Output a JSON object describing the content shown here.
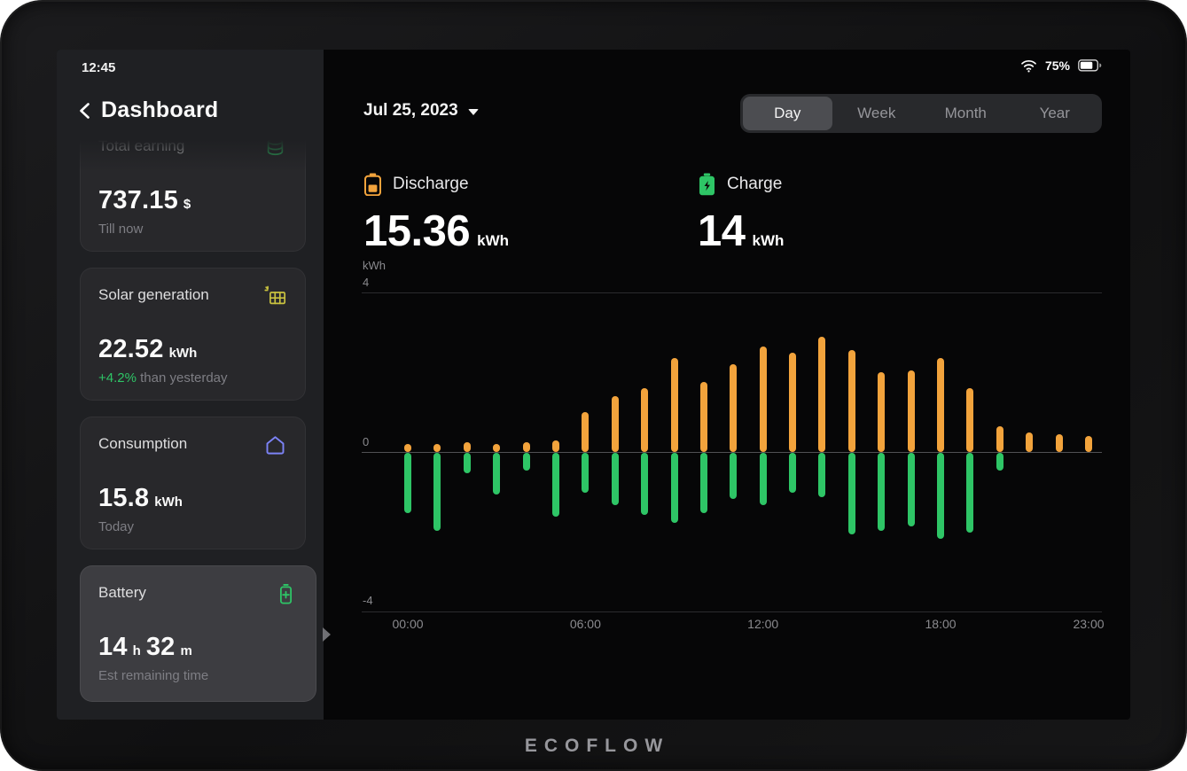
{
  "status_bar": {
    "time": "12:45",
    "battery_percent": "75%"
  },
  "sidebar": {
    "title": "Dashboard",
    "cards": [
      {
        "title": "Total earning",
        "icon": "coins-icon",
        "value": "737.15",
        "unit": "$",
        "subtitle": "Till now"
      },
      {
        "title": "Solar generation",
        "icon": "solar-panel-icon",
        "value": "22.52",
        "unit": "kWh",
        "subtitle_highlight": "+4.2%",
        "subtitle_rest": " than yesterday"
      },
      {
        "title": "Consumption",
        "icon": "house-icon",
        "value": "15.8",
        "unit": "kWh",
        "subtitle": "Today"
      },
      {
        "title": "Battery",
        "icon": "battery-plus-icon",
        "value_h": "14",
        "unit_h": "h",
        "value_m": "32",
        "unit_m": "m",
        "subtitle": "Est remaining time",
        "selected": true
      }
    ]
  },
  "header": {
    "date": "Jul 25, 2023",
    "tabs": [
      {
        "label": "Day",
        "selected": true
      },
      {
        "label": "Week",
        "selected": false
      },
      {
        "label": "Month",
        "selected": false
      },
      {
        "label": "Year",
        "selected": false
      }
    ]
  },
  "stats": {
    "discharge": {
      "label": "Discharge",
      "value": "15.36",
      "unit": "kWh",
      "color": "#f2a33c"
    },
    "charge": {
      "label": "Charge",
      "value": "14",
      "unit": "kWh",
      "color": "#2ec566"
    }
  },
  "chart_data": {
    "type": "bar",
    "title": "",
    "ylabel": "kWh",
    "ylim": [
      -4,
      4
    ],
    "ytick_top": "4",
    "ytick_zero": "0",
    "ytick_bottom": "-4",
    "grid": true,
    "x": [
      0,
      1,
      2,
      3,
      4,
      5,
      6,
      7,
      8,
      9,
      10,
      11,
      12,
      13,
      14,
      15,
      16,
      17,
      18,
      19,
      20,
      21,
      22,
      23
    ],
    "x_ticks": [
      {
        "index": 0,
        "label": "00:00"
      },
      {
        "index": 6,
        "label": "06:00"
      },
      {
        "index": 12,
        "label": "12:00"
      },
      {
        "index": 18,
        "label": "18:00"
      },
      {
        "index": 23,
        "label": "23:00"
      }
    ],
    "series": [
      {
        "name": "Discharge",
        "color": "#f2a33c",
        "values": [
          0.2,
          0.2,
          0.25,
          0.2,
          0.25,
          0.3,
          1.0,
          1.4,
          1.6,
          2.35,
          1.75,
          2.2,
          2.65,
          2.5,
          2.9,
          2.55,
          2.0,
          2.05,
          2.35,
          1.6,
          0.65,
          0.5,
          0.45,
          0.4
        ]
      },
      {
        "name": "Charge",
        "color": "#2ec566",
        "values": [
          -1.5,
          -1.95,
          -0.5,
          -1.05,
          -0.45,
          -1.6,
          -1.0,
          -1.3,
          -1.55,
          -1.75,
          -1.5,
          -1.15,
          -1.3,
          -1.0,
          -1.1,
          -2.05,
          -1.95,
          -1.85,
          -2.15,
          -2.0,
          -0.45,
          0,
          0,
          0
        ]
      }
    ]
  },
  "footer": {
    "logo": "ECOFLOW"
  },
  "colors": {
    "discharge_orange": "#f2a33c",
    "charge_green": "#2ec566",
    "consumption_blue": "#7c83f7",
    "solar_yellow": "#c9c23f"
  }
}
